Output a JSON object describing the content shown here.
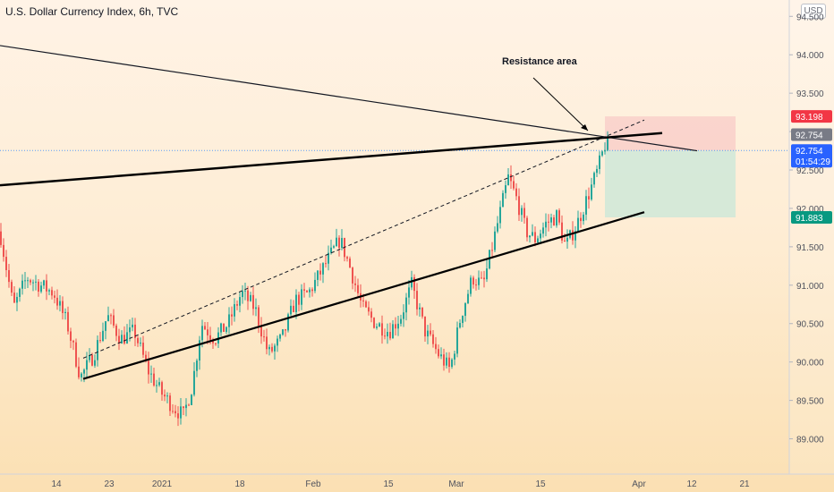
{
  "header": {
    "title": "U.S. Dollar Currency Index, 6h, TVC",
    "currency_badge": "USD"
  },
  "colors": {
    "up": "#26a69a",
    "down": "#ef5350",
    "stop_zone": "#f8c9c6",
    "target_zone": "#cfe8d8",
    "price_tag": "#2962ff",
    "stop_tag": "#f23645",
    "target_tag": "#089981",
    "last_tag": "#787b86"
  },
  "chart_data": {
    "type": "candlestick",
    "title": "U.S. Dollar Currency Index, 6h, TVC",
    "ylim": [
      88.75,
      94.55
    ],
    "y_ticks": [
      "94.500",
      "94.000",
      "93.500",
      "93.000",
      "92.500",
      "92.000",
      "91.500",
      "91.000",
      "90.500",
      "90.000",
      "89.500",
      "89.000"
    ],
    "x_ticks": [
      "14",
      "23",
      "2021",
      "18",
      "Feb",
      "15",
      "Mar",
      "15",
      "Apr",
      "12",
      "21"
    ],
    "price_tags": {
      "stop": "93.198",
      "last_close": "92.754",
      "current": "92.754",
      "countdown": "01:54:29",
      "target": "91.883"
    },
    "annotation": "Resistance area",
    "series": [
      {
        "name": "close",
        "anchors": [
          [
            0,
            91.7
          ],
          [
            15,
            90.7
          ],
          [
            30,
            91.1
          ],
          [
            45,
            91.0
          ],
          [
            60,
            90.9
          ],
          [
            75,
            90.5
          ],
          [
            90,
            89.8
          ],
          [
            105,
            90.1
          ],
          [
            120,
            90.6
          ],
          [
            135,
            90.3
          ],
          [
            150,
            90.4
          ],
          [
            165,
            89.9
          ],
          [
            180,
            89.6
          ],
          [
            195,
            89.4
          ],
          [
            205,
            89.3
          ],
          [
            215,
            89.7
          ],
          [
            225,
            90.5
          ],
          [
            240,
            90.3
          ],
          [
            255,
            90.5
          ],
          [
            270,
            90.9
          ],
          [
            285,
            90.7
          ],
          [
            300,
            90.1
          ],
          [
            315,
            90.3
          ],
          [
            330,
            90.8
          ],
          [
            345,
            90.9
          ],
          [
            360,
            91.2
          ],
          [
            370,
            91.4
          ],
          [
            380,
            91.6
          ],
          [
            392,
            91.2
          ],
          [
            405,
            90.7
          ],
          [
            420,
            90.5
          ],
          [
            435,
            90.4
          ],
          [
            448,
            90.6
          ],
          [
            460,
            91.0
          ],
          [
            475,
            90.4
          ],
          [
            490,
            90.1
          ],
          [
            503,
            89.9
          ],
          [
            515,
            90.6
          ],
          [
            528,
            91.1
          ],
          [
            540,
            91.0
          ],
          [
            552,
            91.6
          ],
          [
            560,
            92.0
          ],
          [
            568,
            92.4
          ],
          [
            578,
            92.1
          ],
          [
            588,
            91.7
          ],
          [
            598,
            91.6
          ],
          [
            610,
            91.8
          ],
          [
            622,
            91.9
          ],
          [
            632,
            91.5
          ],
          [
            645,
            91.8
          ],
          [
            655,
            92.1
          ],
          [
            668,
            92.5
          ],
          [
            677,
            92.87
          ],
          [
            683,
            92.75
          ]
        ]
      }
    ],
    "trendlines": [
      {
        "name": "descending resistance",
        "points": [
          [
            "start",
            94.12
          ],
          [
            "end",
            92.75
          ]
        ]
      },
      {
        "name": "rising resistance",
        "points": [
          [
            "start",
            92.3
          ],
          [
            "end",
            92.98
          ]
        ]
      },
      {
        "name": "lower channel support",
        "points": [
          [
            "start",
            89.78
          ],
          [
            "end",
            91.95
          ]
        ]
      },
      {
        "name": "upper channel dashed",
        "points": [
          [
            "start",
            90.05
          ],
          [
            "end",
            93.15
          ]
        ]
      }
    ],
    "zones": [
      {
        "name": "stop",
        "from": 92.754,
        "to": 93.198
      },
      {
        "name": "target",
        "from": 91.883,
        "to": 92.754
      }
    ]
  }
}
